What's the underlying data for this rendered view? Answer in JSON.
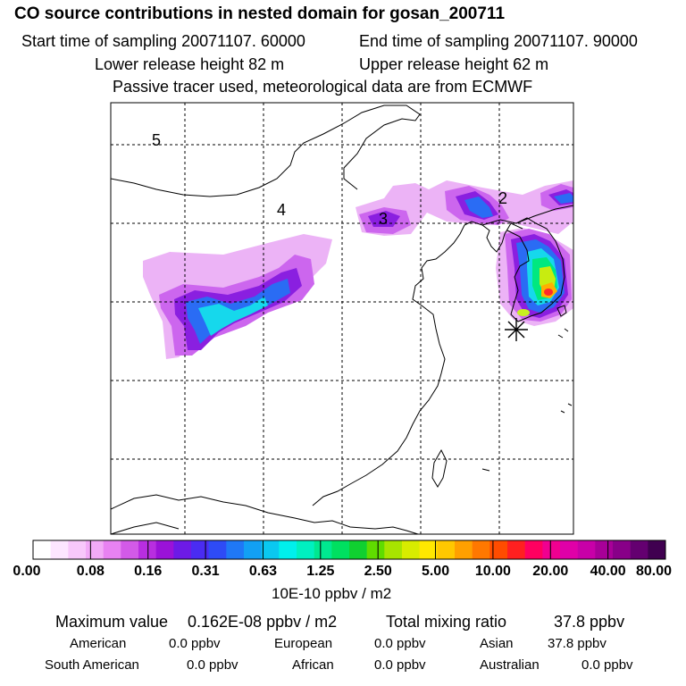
{
  "header": {
    "title": "CO  source contributions in nested domain for gosan_200711",
    "start_label": "Start time of sampling 20071107. 60000",
    "end_label": "End time of sampling 20071107. 90000",
    "lower_label": "Lower release height   82 m",
    "upper_label": "Upper release height   62 m",
    "note": "Passive tracer used, meteorological data are from ECMWF"
  },
  "map": {
    "region_labels": [
      "5",
      "4",
      "3",
      "2"
    ],
    "receptor_marker": "star-icon"
  },
  "colorbar": {
    "colors": [
      "#ffffff",
      "#fde6ff",
      "#f8c8fb",
      "#f2aaf7",
      "#e882f2",
      "#d35ae8",
      "#b82ee0",
      "#9a12d8",
      "#6d1ae6",
      "#4a2cf2",
      "#2e4bf6",
      "#1f78f6",
      "#12a0f4",
      "#0ac8f0",
      "#00f0ec",
      "#00f0c0",
      "#00e890",
      "#00e060",
      "#10d030",
      "#60dc00",
      "#a8e400",
      "#d8ec00",
      "#ffe800",
      "#ffc800",
      "#ffa000",
      "#ff7800",
      "#ff4c00",
      "#ff2020",
      "#ff0060",
      "#f00090",
      "#e000a8",
      "#c800a8",
      "#a80098",
      "#880088",
      "#640070",
      "#400050"
    ],
    "tick_labels": [
      "0.00",
      "0.08",
      "0.16",
      "0.31",
      "0.63",
      "1.25",
      "2.50",
      "5.00",
      "10.00",
      "20.00",
      "40.00",
      "80.00"
    ],
    "unit": "10E-10 ppbv / m2"
  },
  "summary": {
    "max_label": "Maximum value",
    "max_value": "0.162E-08 ppbv / m2",
    "total_label": "Total mixing ratio",
    "total_value": "37.8 ppbv",
    "american_label": "American",
    "american_value": "0.0 ppbv",
    "european_label": "European",
    "european_value": "0.0 ppbv",
    "asian_label": "Asian",
    "asian_value": "37.8 ppbv",
    "south_american_label": "South American",
    "south_american_value": "0.0 ppbv",
    "african_label": "African",
    "african_value": "0.0 ppbv",
    "australian_label": "Australian",
    "australian_value": "0.0 ppbv"
  }
}
